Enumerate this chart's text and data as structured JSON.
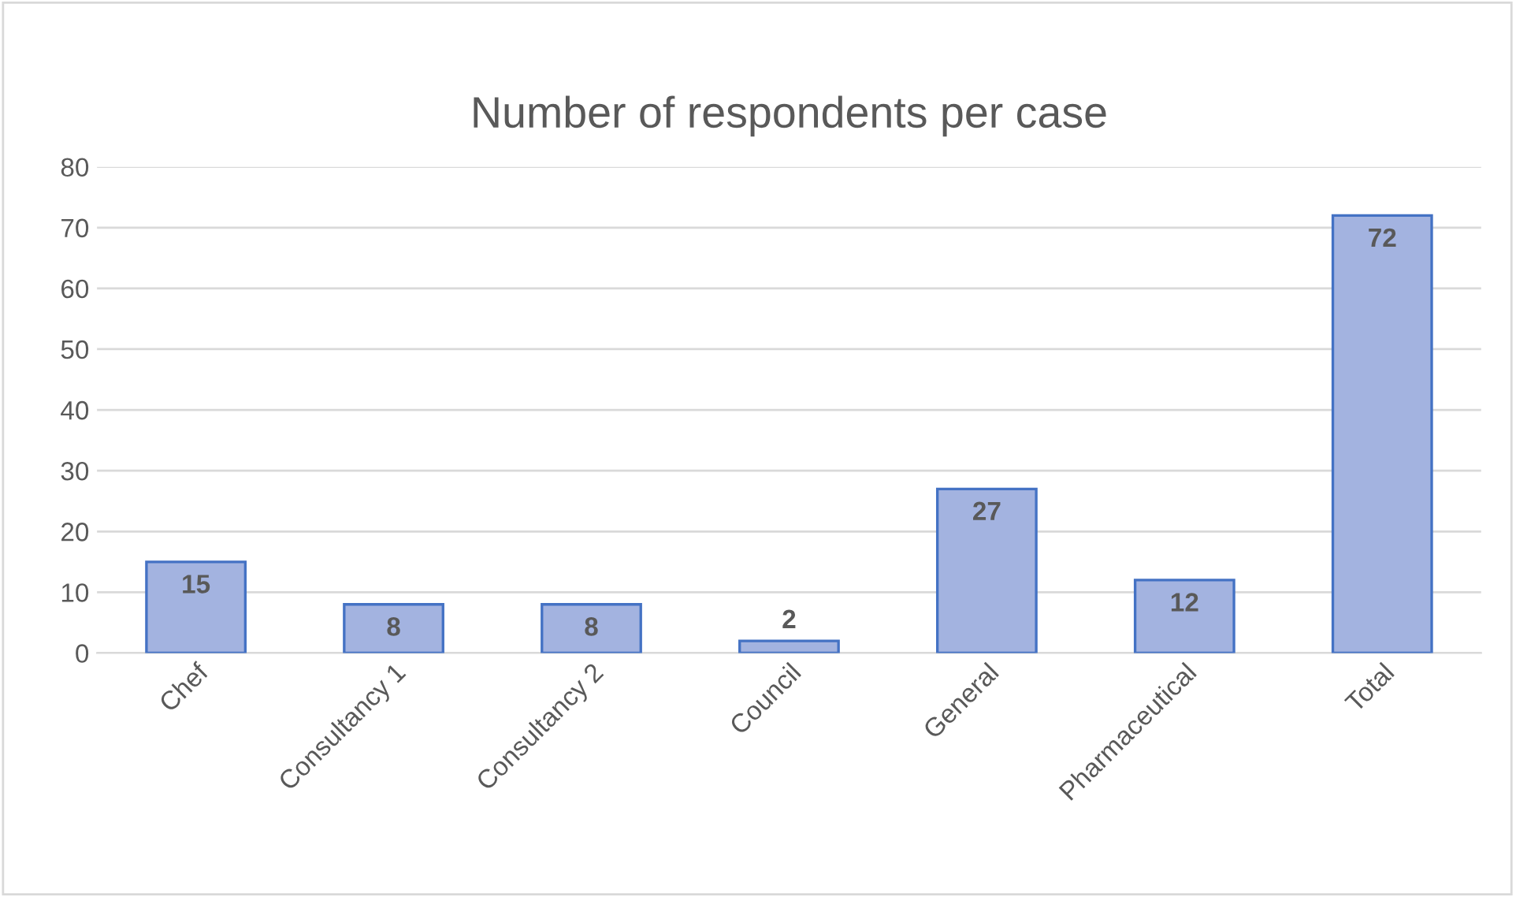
{
  "chart_data": {
    "type": "bar",
    "title": "Number of respondents per case",
    "categories": [
      "Chef",
      "Consultancy 1",
      "Consultancy 2",
      "Council",
      "General",
      "Pharmaceutical",
      "Total"
    ],
    "values": [
      15,
      8,
      8,
      2,
      27,
      12,
      72
    ],
    "color": "#a3b3e0",
    "ylim": [
      0,
      80
    ],
    "yticks": [
      0,
      10,
      20,
      30,
      40,
      50,
      60,
      70,
      80
    ],
    "grid": "y",
    "data_labels": true
  }
}
